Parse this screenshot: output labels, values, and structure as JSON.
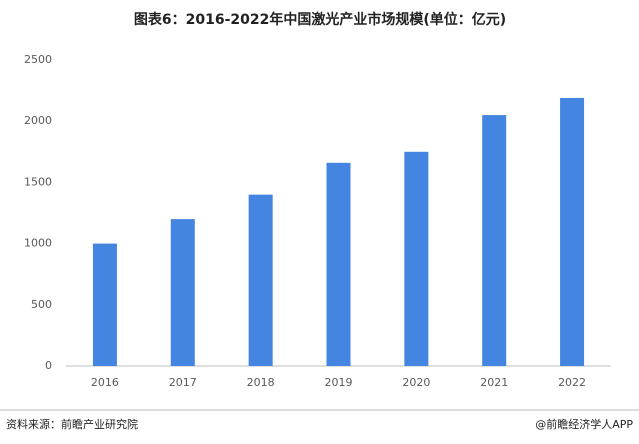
{
  "chart_data": {
    "type": "bar",
    "title": "图表6：2016-2022年中国激光产业市场规模(单位：亿元)",
    "categories": [
      "2016",
      "2017",
      "2018",
      "2019",
      "2020",
      "2021",
      "2022"
    ],
    "values": [
      1000,
      1200,
      1400,
      1660,
      1750,
      2050,
      2190
    ],
    "color": "#4385e0",
    "ylim": [
      0,
      2500
    ],
    "yticks": [
      0,
      500,
      1000,
      1500,
      2000,
      2500
    ],
    "grid": false,
    "source": "资料来源：前瞻产业研究院",
    "credit": "@前瞻经济学人APP"
  }
}
